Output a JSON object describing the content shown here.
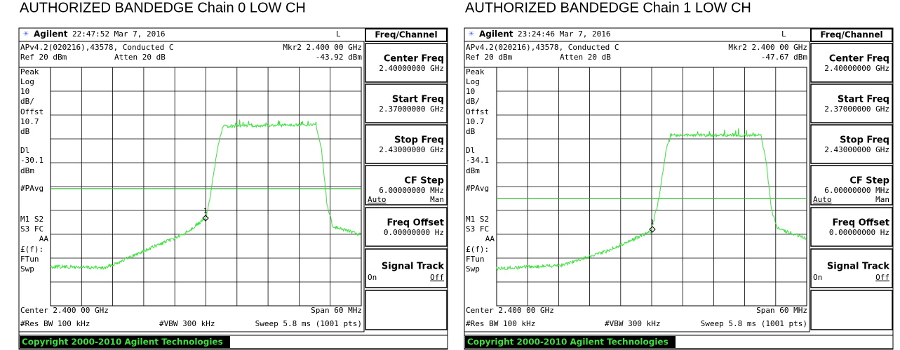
{
  "panels": [
    {
      "title": "AUTHORIZED BANDEDGE Chain 0 LOW CH",
      "brand": "Agilent",
      "time": "22:47:52  Mar 7, 2016",
      "mode": "L",
      "menu_title": "Freq/Channel",
      "info_left": "APv4.2(020216),43578, Conducted C",
      "marker_label": "Mkr2  2.400 00 GHz",
      "ref": "Ref 20 dBm",
      "atten": "Atten 20 dB",
      "marker_value": "-43.92 dBm",
      "side_labels": [
        "Peak",
        "Log",
        "10",
        "dB/",
        "Offst",
        "10.7",
        "dB",
        "Dl",
        "-30.1",
        "dBm",
        "#PAvg",
        "M1  S2",
        "S3  FC",
        "AA",
        "£(f):",
        "FTun",
        "Swp"
      ],
      "marker_number": "1",
      "center": "Center 2.400 00 GHz",
      "span": "Span 60 MHz",
      "res_bw": "#Res BW 100 kHz",
      "vbw": "#VBW 300 kHz",
      "sweep": "Sweep 5.8 ms (1001 pts)",
      "copyright": "Copyright 2000-2010 Agilent Technologies",
      "softkeys": [
        {
          "label": "Center Freq",
          "value": "2.40000000 GHz"
        },
        {
          "label": "Start Freq",
          "value": "2.37000000 GHz"
        },
        {
          "label": "Stop Freq",
          "value": "2.43000000 GHz"
        },
        {
          "label": "CF Step",
          "value": "6.00000000 MHz",
          "options": [
            "Auto",
            "Man"
          ]
        },
        {
          "label": "Freq Offset",
          "value": "0.00000000  Hz"
        },
        {
          "label": "Signal Track",
          "options": [
            "On",
            "Off"
          ]
        }
      ]
    },
    {
      "title": "AUTHORIZED BANDEDGE Chain 1 LOW CH",
      "brand": "Agilent",
      "time": "23:24:46  Mar 7, 2016",
      "mode": "L",
      "menu_title": "Freq/Channel",
      "info_left": "APv4.2(020216),43578, Conducted C",
      "marker_label": "Mkr2  2.400 00 GHz",
      "ref": "Ref 20 dBm",
      "atten": "Atten 20 dB",
      "marker_value": "-47.67 dBm",
      "side_labels": [
        "Peak",
        "Log",
        "10",
        "dB/",
        "Offst",
        "10.7",
        "dB",
        "Dl",
        "-34.1",
        "dBm",
        "#PAvg",
        "M1  S2",
        "S3  FC",
        "AA",
        "£(f):",
        "FTun",
        "Swp"
      ],
      "marker_number": "1",
      "center": "Center 2.400 00 GHz",
      "span": "Span 60 MHz",
      "res_bw": "#Res BW 100 kHz",
      "vbw": "#VBW 300 kHz",
      "sweep": "Sweep 5.8 ms (1001 pts)",
      "copyright": "Copyright 2000-2010 Agilent Technologies",
      "softkeys": [
        {
          "label": "Center Freq",
          "value": "2.40000000 GHz"
        },
        {
          "label": "Start Freq",
          "value": "2.37000000 GHz"
        },
        {
          "label": "Stop Freq",
          "value": "2.43000000 GHz"
        },
        {
          "label": "CF Step",
          "value": "6.00000000 MHz",
          "options": [
            "Auto",
            "Man"
          ]
        },
        {
          "label": "Freq Offset",
          "value": "0.00000000  Hz"
        },
        {
          "label": "Signal Track",
          "options": [
            "On",
            "Off"
          ]
        }
      ]
    }
  ]
}
